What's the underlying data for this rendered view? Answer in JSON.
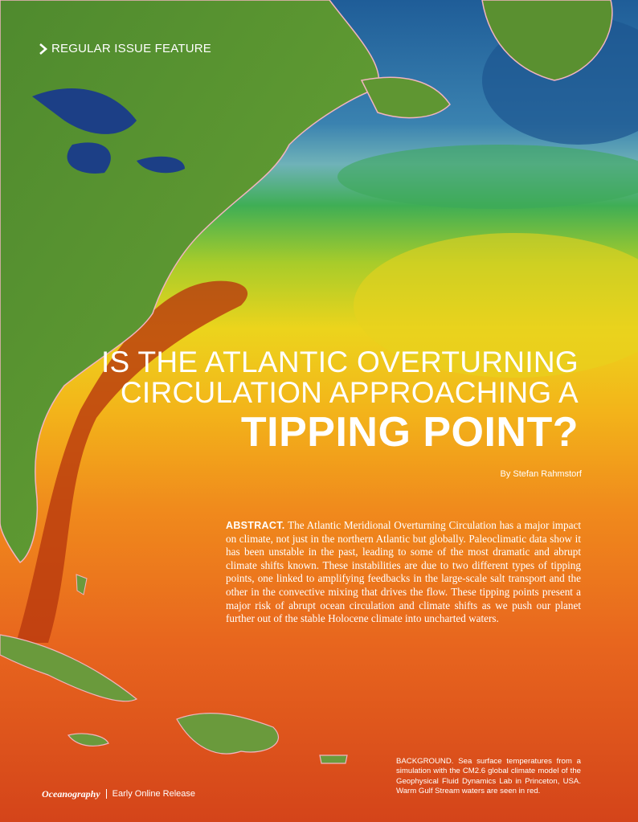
{
  "section_label": "REGULAR ISSUE FEATURE",
  "title": {
    "lines": [
      "IS THE ATLANTIC OVERTURNING",
      "CIRCULATION APPROACHING A"
    ],
    "emphasis": "TIPPING POINT?"
  },
  "byline": "By Stefan Rahmstorf",
  "abstract": {
    "label": "ABSTRACT.",
    "text": "The Atlantic Meridional Overturning Circulation has a major impact on climate, not just in the northern Atlantic but globally. Paleoclimatic data show it has been unstable in the past, leading to some of the most dramatic and abrupt climate shifts known. These instabilities are due to two different types of tipping points, one linked to amplifying feedbacks in the large-scale salt transport and the other in the convective mixing that drives the flow. These tipping points present a major risk of abrupt ocean circulation and climate shifts as we push our planet further out of the stable Holocene climate into uncharted waters."
  },
  "caption": "BACKGROUND. Sea surface temperatures from a simulation with the CM2.6 global climate model of the Geophysical Fluid Dynamics Lab in Princeton, USA. Warm Gulf Stream waters are seen in red.",
  "footer": {
    "journal": "Oceanography",
    "release": "Early Online Release"
  }
}
